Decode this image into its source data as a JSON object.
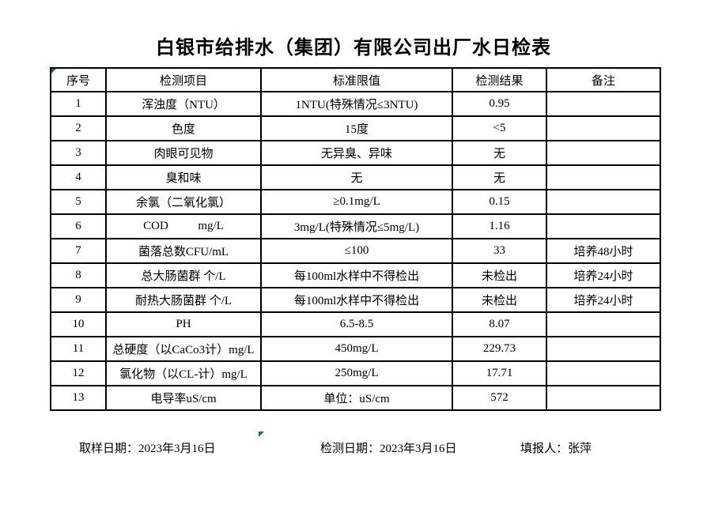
{
  "title": "白银市给排水（集团）有限公司出厂水日检表",
  "table": {
    "headers": [
      "序号",
      "检测项目",
      "标准限值",
      "检测结果",
      "备注"
    ],
    "rows": [
      {
        "no": "1",
        "item": "浑浊度（NTU）",
        "standard": "1NTU(特殊情况≤3NTU)",
        "result": "0.95",
        "remark": ""
      },
      {
        "no": "2",
        "item": "色度",
        "standard": "15度",
        "result": "<5",
        "remark": ""
      },
      {
        "no": "3",
        "item": "肉眼可见物",
        "standard": "无异臭、异味",
        "result": "无",
        "remark": ""
      },
      {
        "no": "4",
        "item": "臭和味",
        "standard": "无",
        "result": "无",
        "remark": ""
      },
      {
        "no": "5",
        "item": "余氯（二氧化氯）",
        "standard": "≥0.1mg/L",
        "result": "0.15",
        "remark": ""
      },
      {
        "no": "6",
        "item": "COD          mg/L",
        "standard": "3mg/L(特殊情况≤5mg/L)",
        "result": "1.16",
        "remark": ""
      },
      {
        "no": "7",
        "item": "菌落总数CFU/mL",
        "standard": "≤100",
        "result": "33",
        "remark": "培养48小时"
      },
      {
        "no": "8",
        "item": "总大肠菌群 个/L",
        "standard": "每100ml水样中不得检出",
        "result": "未检出",
        "remark": "培养24小时"
      },
      {
        "no": "9",
        "item": "耐热大肠菌群 个/L",
        "standard": "每100ml水样中不得检出",
        "result": "未检出",
        "remark": "培养24小时"
      },
      {
        "no": "10",
        "item": "PH",
        "standard": "6.5-8.5",
        "result": "8.07",
        "remark": ""
      },
      {
        "no": "11",
        "item": "总硬度（以CaCo3计）mg/L",
        "standard": "450mg/L",
        "result": "229.73",
        "remark": ""
      },
      {
        "no": "12",
        "item": "氯化物（以CL-计）mg/L",
        "standard": "250mg/L",
        "result": "17.71",
        "remark": ""
      },
      {
        "no": "13",
        "item": "电导率uS/cm",
        "standard": "单位：uS/cm",
        "result": "572",
        "remark": ""
      }
    ]
  },
  "footer": {
    "sampling_date": "取样日期：2023年3月16日",
    "test_date": "检测日期：2023年3月16日",
    "reporter": "填报人：张萍"
  },
  "colors": {
    "marker_green": "#1f7a33",
    "border": "#000000"
  }
}
